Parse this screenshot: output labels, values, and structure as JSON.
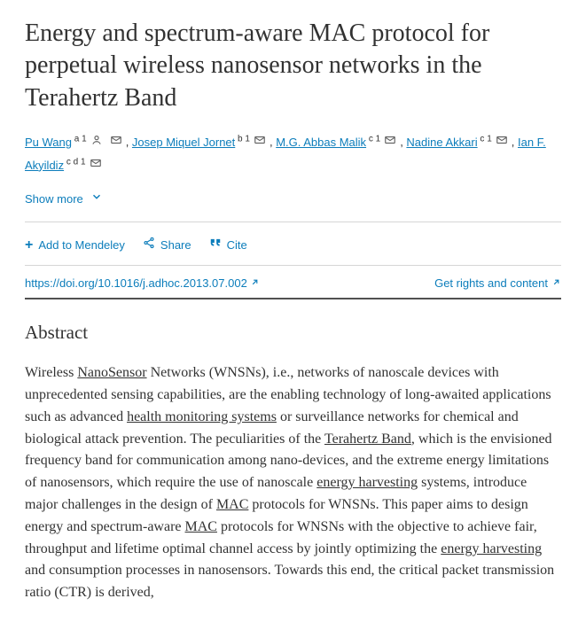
{
  "title": "Energy and spectrum-aware MAC protocol for perpetual wireless nanosensor networks in the Terahertz Band",
  "authors": [
    {
      "name": "Pu Wang",
      "aff": "a 1",
      "person_icon": true
    },
    {
      "name": "Josep Miquel Jornet",
      "aff": "b 1",
      "person_icon": false
    },
    {
      "name": "M.G. Abbas Malik",
      "aff": "c 1",
      "person_icon": false
    },
    {
      "name": "Nadine Akkari",
      "aff": "c 1",
      "person_icon": false
    },
    {
      "name": "Ian F. Akyildiz",
      "aff": "c d 1",
      "person_icon": false
    }
  ],
  "show_more_label": "Show more",
  "actions": {
    "mendeley": "Add to Mendeley",
    "share": "Share",
    "cite": "Cite"
  },
  "doi": "https://doi.org/10.1016/j.adhoc.2013.07.002",
  "rights_label": "Get rights and content",
  "abstract_heading": "Abstract",
  "abstract": {
    "p1a": "Wireless ",
    "p1_u1": "NanoSensor",
    "p1b": " Networks (WNSNs), i.e., networks of nanoscale devices with unprecedented sensing capabilities, are the enabling technology of long-awaited applications such as advanced ",
    "p1_u2": "health monitoring systems",
    "p1c": " or surveillance networks for chemical and biological attack prevention. The peculiarities of the ",
    "p1_u3": "Terahertz Band",
    "p1d": ", which is the envisioned frequency band for communication among nano-devices, and the extreme energy limitations of nanosensors, which require the use of nanoscale ",
    "p1_u4": "energy harvesting",
    "p1e": " systems, introduce major challenges in the design of ",
    "p1_u5": "MAC",
    "p1f": " protocols for WNSNs. This paper aims to design energy and spectrum-aware ",
    "p1_u6": "MAC",
    "p1g": " protocols for WNSNs with the objective to achieve fair, throughput and lifetime optimal channel access by jointly optimizing the ",
    "p1_u7": "energy harvesting",
    "p1h": " and consumption processes in nanosensors. Towards this end, the critical packet transmission ratio (CTR) is derived,"
  },
  "colors": {
    "link": "#0c7dbb"
  }
}
